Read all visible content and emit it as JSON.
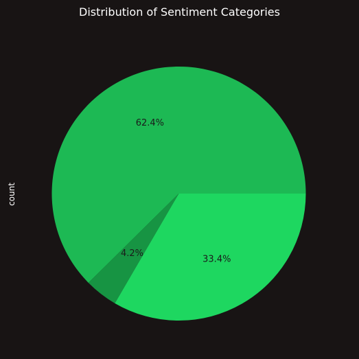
{
  "chart_data": {
    "type": "pie",
    "title": "Distribution of Sentiment Categories",
    "ylabel": "count",
    "slices": [
      {
        "percent": 62.4,
        "label": "62.4%",
        "color": "#1db954"
      },
      {
        "percent": 4.2,
        "label": "4.2%",
        "color": "#179443"
      },
      {
        "percent": 33.4,
        "label": "33.4%",
        "color": "#1ed760"
      }
    ],
    "background": "#181414",
    "legend": "none"
  }
}
